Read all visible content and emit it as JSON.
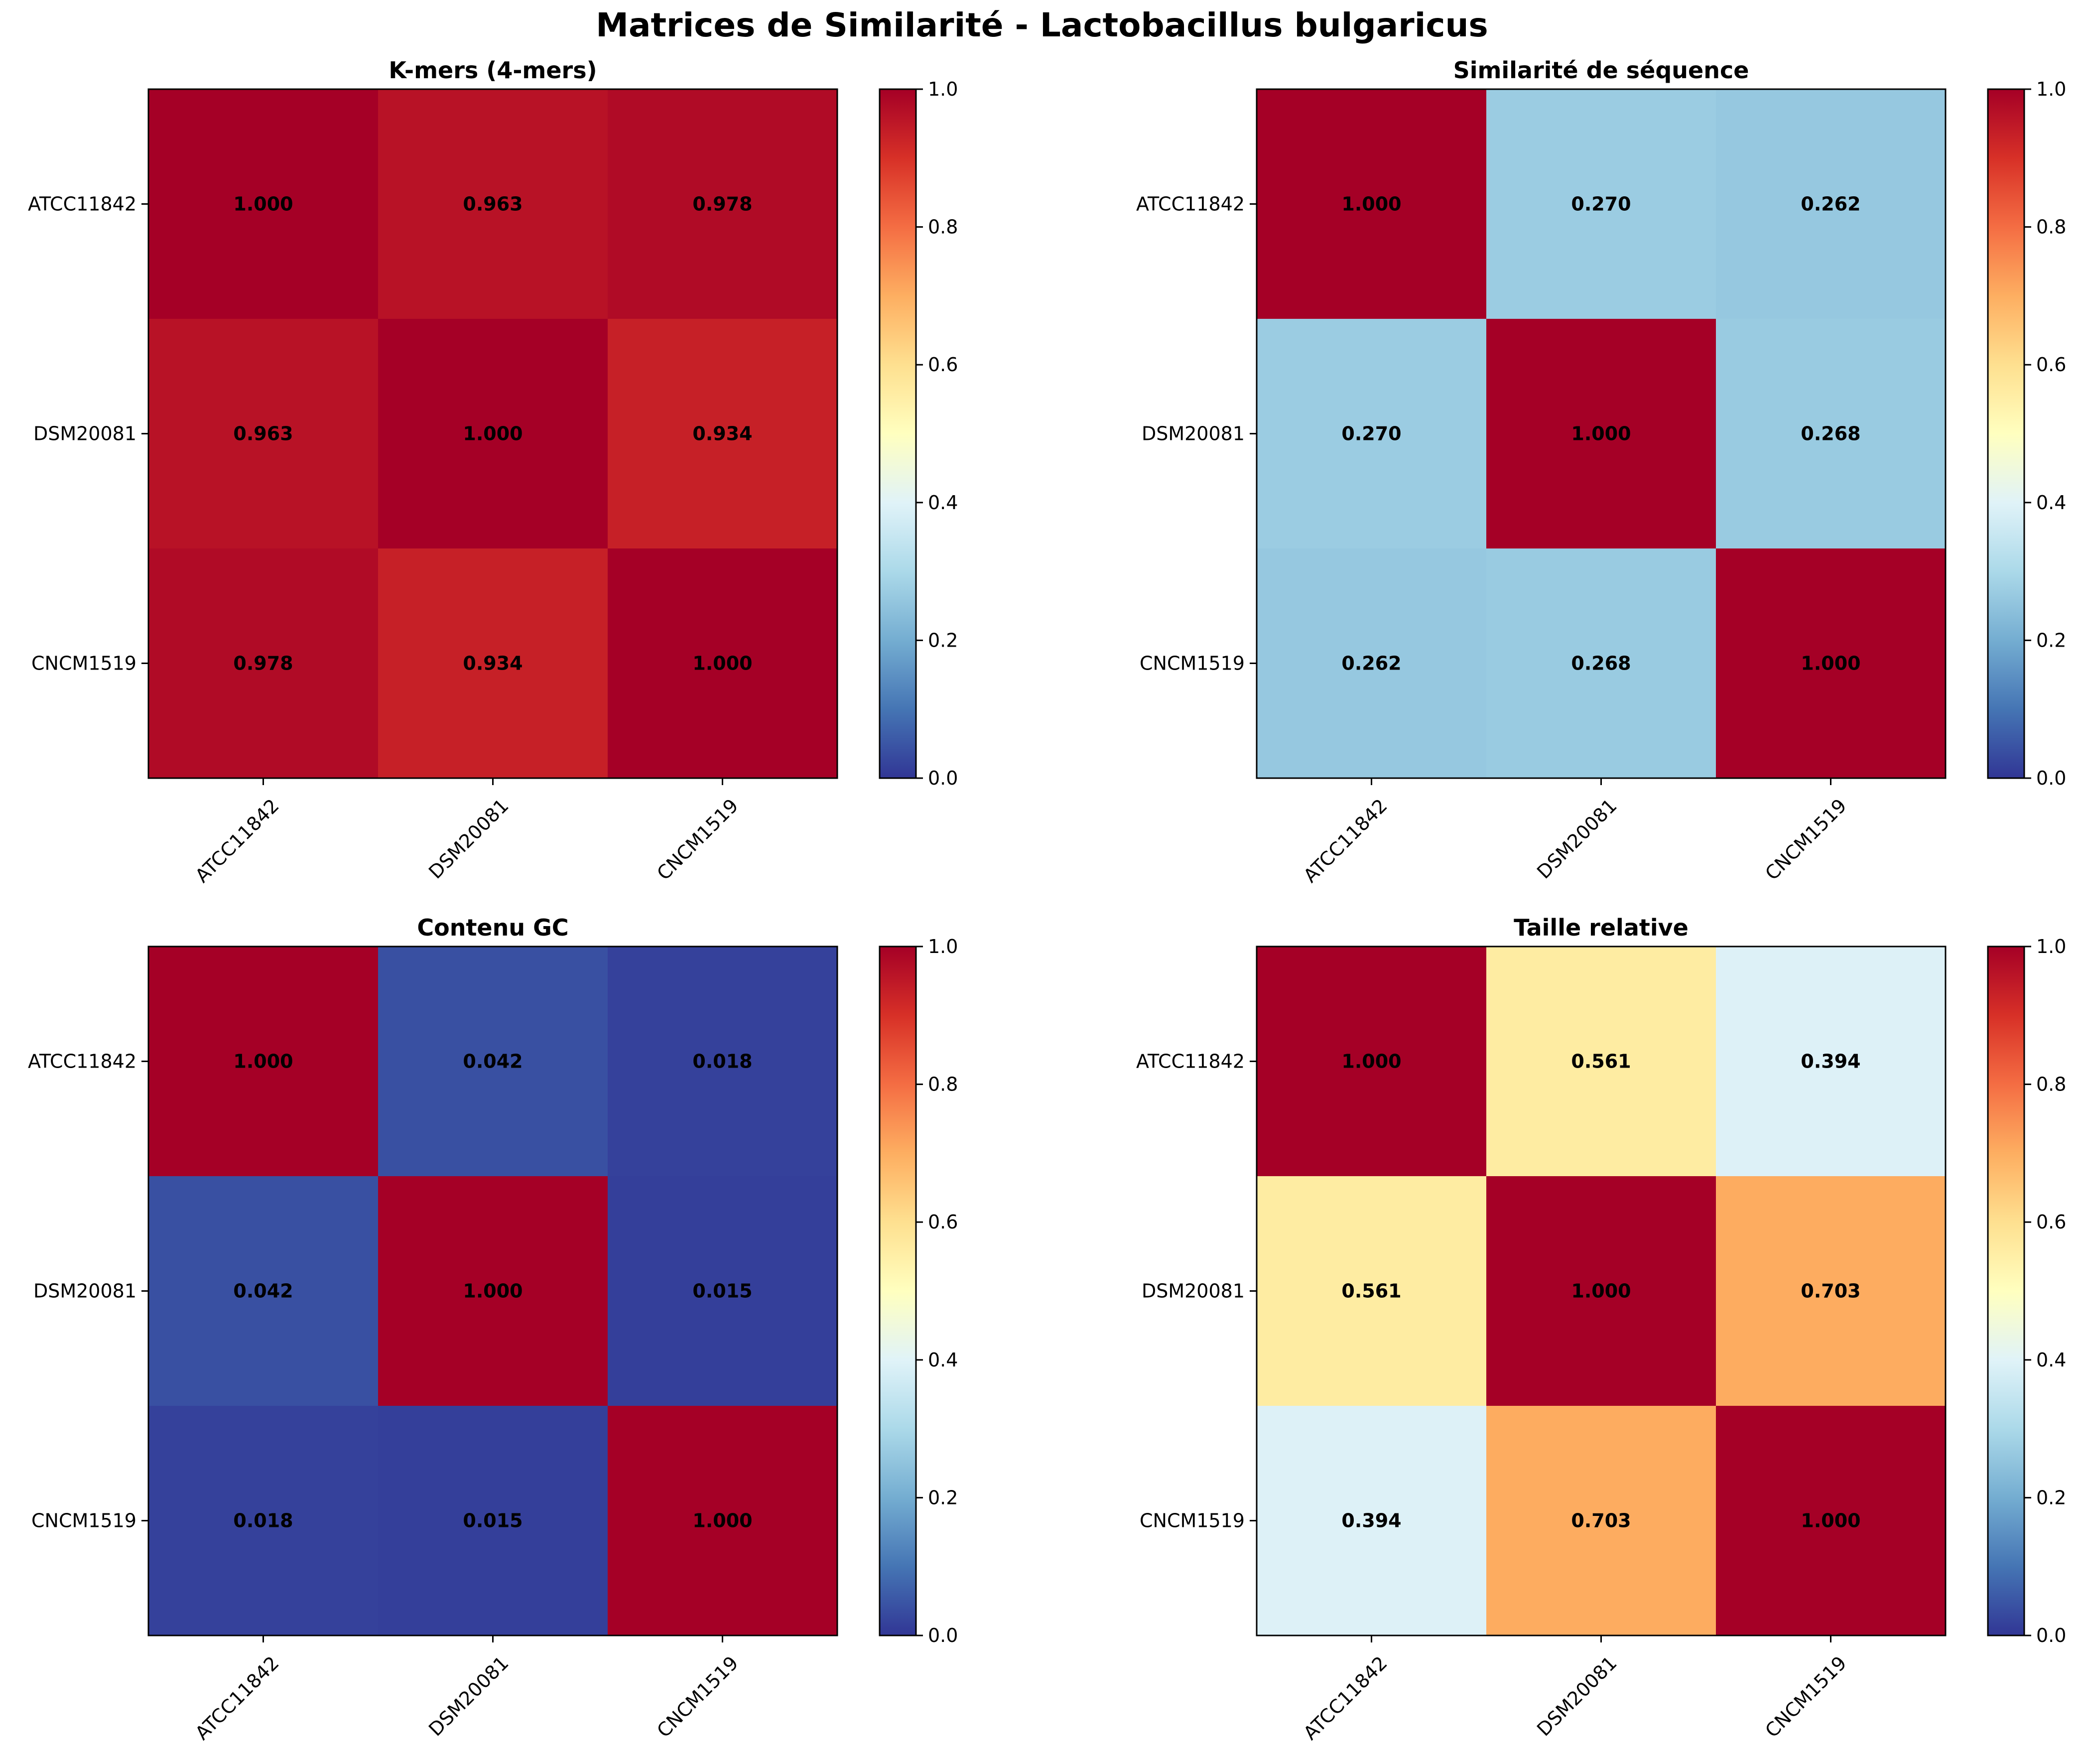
{
  "figure": {
    "title": "Matrices de Similarité - Lactobacillus bulgaricus"
  },
  "chart_data": [
    {
      "type": "heatmap",
      "title": "K-mers (4-mers)",
      "xlabel": "",
      "ylabel": "",
      "x_categories": [
        "ATCC11842",
        "DSM20081",
        "CNCM1519"
      ],
      "y_categories": [
        "ATCC11842",
        "DSM20081",
        "CNCM1519"
      ],
      "values": [
        [
          1.0,
          0.963,
          0.978
        ],
        [
          0.963,
          1.0,
          0.934
        ],
        [
          0.978,
          0.934,
          1.0
        ]
      ],
      "value_format": "3 decimals",
      "colormap": "RdYlBu_r",
      "vmin": 0.0,
      "vmax": 1.0,
      "colorbar_ticks": [
        "0.0",
        "0.2",
        "0.4",
        "0.6",
        "0.8",
        "1.0"
      ],
      "x_tick_rotation_deg": 45
    },
    {
      "type": "heatmap",
      "title": "Similarité de séquence",
      "xlabel": "",
      "ylabel": "",
      "x_categories": [
        "ATCC11842",
        "DSM20081",
        "CNCM1519"
      ],
      "y_categories": [
        "ATCC11842",
        "DSM20081",
        "CNCM1519"
      ],
      "values": [
        [
          1.0,
          0.27,
          0.262
        ],
        [
          0.27,
          1.0,
          0.268
        ],
        [
          0.262,
          0.268,
          1.0
        ]
      ],
      "value_format": "3 decimals",
      "colormap": "RdYlBu_r",
      "vmin": 0.0,
      "vmax": 1.0,
      "colorbar_ticks": [
        "0.0",
        "0.2",
        "0.4",
        "0.6",
        "0.8",
        "1.0"
      ],
      "x_tick_rotation_deg": 45
    },
    {
      "type": "heatmap",
      "title": "Contenu GC",
      "xlabel": "",
      "ylabel": "",
      "x_categories": [
        "ATCC11842",
        "DSM20081",
        "CNCM1519"
      ],
      "y_categories": [
        "ATCC11842",
        "DSM20081",
        "CNCM1519"
      ],
      "values": [
        [
          1.0,
          0.042,
          0.018
        ],
        [
          0.042,
          1.0,
          0.015
        ],
        [
          0.018,
          0.015,
          1.0
        ]
      ],
      "value_format": "3 decimals",
      "colormap": "RdYlBu_r",
      "vmin": 0.0,
      "vmax": 1.0,
      "colorbar_ticks": [
        "0.0",
        "0.2",
        "0.4",
        "0.6",
        "0.8",
        "1.0"
      ],
      "x_tick_rotation_deg": 45
    },
    {
      "type": "heatmap",
      "title": "Taille relative",
      "xlabel": "",
      "ylabel": "",
      "x_categories": [
        "ATCC11842",
        "DSM20081",
        "CNCM1519"
      ],
      "y_categories": [
        "ATCC11842",
        "DSM20081",
        "CNCM1519"
      ],
      "values": [
        [
          1.0,
          0.561,
          0.394
        ],
        [
          0.561,
          1.0,
          0.703
        ],
        [
          0.394,
          0.703,
          1.0
        ]
      ],
      "value_format": "3 decimals",
      "colormap": "RdYlBu_r",
      "vmin": 0.0,
      "vmax": 1.0,
      "colorbar_ticks": [
        "0.0",
        "0.2",
        "0.4",
        "0.6",
        "0.8",
        "1.0"
      ],
      "x_tick_rotation_deg": 45
    }
  ]
}
